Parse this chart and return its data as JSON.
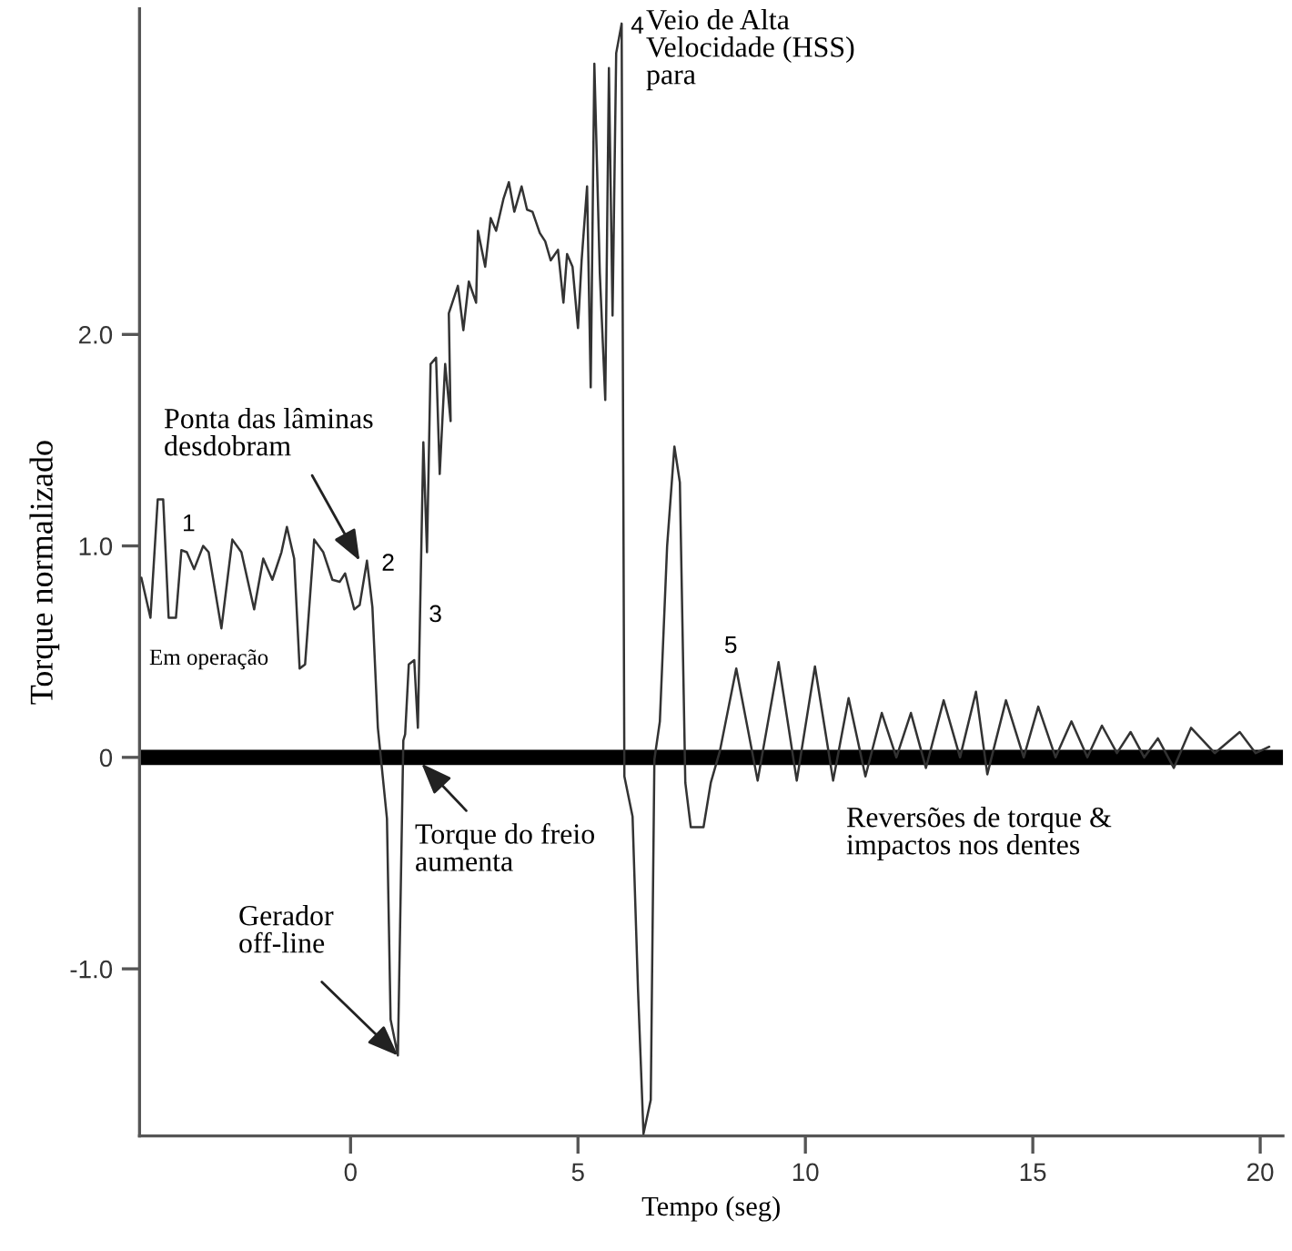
{
  "chart_data": {
    "type": "line",
    "xlabel": "Tempo (seg)",
    "ylabel": "Torque normalizado",
    "xlim": [
      -4.64,
      20.5
    ],
    "ylim": [
      -1.79,
      3.54
    ],
    "xticks": [
      0,
      5,
      10,
      15,
      20
    ],
    "yticks": [
      {
        "value": -1,
        "label": "-1.0"
      },
      0,
      {
        "value": 1,
        "label": "1.0"
      },
      {
        "value": 2,
        "label": "2.0"
      }
    ],
    "grid": false,
    "legend": false,
    "marker": "none",
    "line_style": "solid",
    "ref_lines": [
      {
        "axis": "y",
        "value": 0,
        "color": "#000000"
      }
    ],
    "series": [
      {
        "color": "#333333",
        "x": [
          -4.6,
          -4.4,
          -4.24,
          -4.12,
          -4.0,
          -3.84,
          -3.72,
          -3.6,
          -3.44,
          -3.24,
          -3.12,
          -2.84,
          -2.6,
          -2.4,
          -2.12,
          -1.92,
          -1.72,
          -1.52,
          -1.4,
          -1.24,
          -1.12,
          -1.0,
          -0.8,
          -0.6,
          -0.4,
          -0.24,
          -0.12,
          0.08,
          0.2,
          0.36,
          0.48,
          0.6,
          0.8,
          0.88,
          1.04,
          1.16,
          1.2,
          1.28,
          1.4,
          1.48,
          1.6,
          1.68,
          1.76,
          1.88,
          1.96,
          2.08,
          2.2,
          2.16,
          2.36,
          2.48,
          2.6,
          2.76,
          2.8,
          2.96,
          3.08,
          3.2,
          3.36,
          3.48,
          3.6,
          3.76,
          3.88,
          4.0,
          4.16,
          4.28,
          4.4,
          4.56,
          4.68,
          4.76,
          4.88,
          5.0,
          5.08,
          5.2,
          5.28,
          5.36,
          5.48,
          5.6,
          5.68,
          5.76,
          5.84,
          5.96,
          6.02,
          6.2,
          6.32,
          6.44,
          6.6,
          6.68,
          6.8,
          6.96,
          7.12,
          7.24,
          7.36,
          7.48,
          7.76,
          7.92,
          8.12,
          8.48,
          8.95,
          9.41,
          9.81,
          10.21,
          10.61,
          10.95,
          11.32,
          11.68,
          12.0,
          12.32,
          12.65,
          13.04,
          13.4,
          13.75,
          14.0,
          14.41,
          14.8,
          15.12,
          15.5,
          15.85,
          16.2,
          16.52,
          16.85,
          17.15,
          17.45,
          17.75,
          18.1,
          18.48,
          19.0,
          19.55,
          19.9,
          20.2
        ],
        "values": [
          0.85,
          0.66,
          1.22,
          1.22,
          0.66,
          0.66,
          0.98,
          0.97,
          0.89,
          1.0,
          0.97,
          0.61,
          1.03,
          0.97,
          0.7,
          0.94,
          0.84,
          0.97,
          1.09,
          0.94,
          0.42,
          0.44,
          1.03,
          0.97,
          0.84,
          0.83,
          0.87,
          0.7,
          0.72,
          0.93,
          0.71,
          0.14,
          -0.29,
          -1.24,
          -1.41,
          0.08,
          0.11,
          0.44,
          0.46,
          0.14,
          1.49,
          0.97,
          1.86,
          1.89,
          1.34,
          1.86,
          1.59,
          2.1,
          2.23,
          2.02,
          2.25,
          2.15,
          2.49,
          2.32,
          2.55,
          2.49,
          2.64,
          2.72,
          2.58,
          2.7,
          2.59,
          2.58,
          2.48,
          2.44,
          2.35,
          2.4,
          2.15,
          2.38,
          2.32,
          2.03,
          2.35,
          2.7,
          1.75,
          3.28,
          2.29,
          1.69,
          3.26,
          2.09,
          3.33,
          3.47,
          -0.09,
          -0.28,
          -1.1,
          -1.78,
          -1.62,
          -0.01,
          0.17,
          1.0,
          1.47,
          1.3,
          -0.12,
          -0.33,
          -0.33,
          -0.12,
          0.03,
          0.42,
          -0.11,
          0.45,
          -0.11,
          0.43,
          -0.11,
          0.28,
          -0.09,
          0.21,
          0.0,
          0.21,
          -0.05,
          0.27,
          0.0,
          0.31,
          -0.08,
          0.27,
          0.0,
          0.24,
          0.0,
          0.17,
          0.0,
          0.15,
          0.02,
          0.12,
          0.0,
          0.09,
          -0.05,
          0.14,
          0.02,
          0.12,
          0.02,
          0.05
        ]
      }
    ],
    "annotations": [
      {
        "text": "1",
        "x": -3.6,
        "y": 0.97
      },
      {
        "text": "2",
        "x": 0.36,
        "y": 0.93
      },
      {
        "text": "3",
        "x": 1.6,
        "y": 0.67
      },
      {
        "text": "4",
        "x": 5.96,
        "y": 3.47
      },
      {
        "text": "5",
        "x": 8.48,
        "y": 0.42
      },
      "Em operação",
      {
        "text": "Ponta das lâminas\ndesdobram",
        "x": 0.2,
        "y": 0.93
      },
      {
        "text": "Gerador\noff-line",
        "x": 1.04,
        "y": -1.41
      },
      {
        "text": "Torque do freio\naumenta",
        "x": 1.56,
        "y": -0.03
      },
      "Veio de Alta\nVelocidade (HSS)\npara",
      "Reversões de torque &\nimpactos nos dentes"
    ]
  }
}
